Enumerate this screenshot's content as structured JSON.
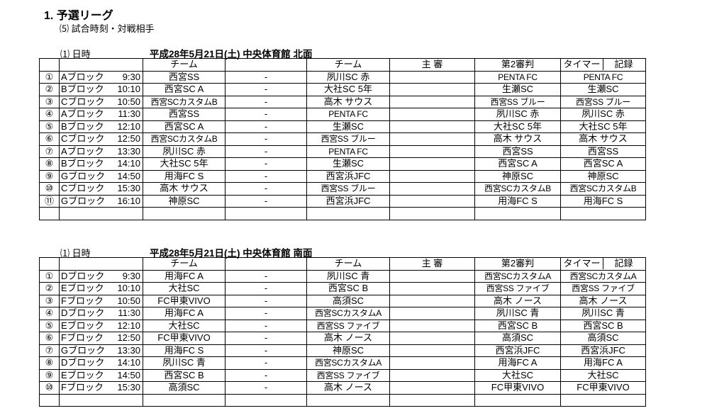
{
  "heading": "1.  予選リーグ",
  "subheading": "⑸  試合時刻・対戦相手",
  "headers": {
    "team": "チーム",
    "referee": "主 審",
    "second_referee": "第2審判",
    "timer": "タイマー",
    "record": "記録"
  },
  "sections": [
    {
      "label": "⑴  日時",
      "title": "平成28年5月21日(土)  中央体育館  北面",
      "rows": [
        {
          "no": "①",
          "block": "Aブロック",
          "time": "9:30",
          "home": "西宮SS",
          "vs": "-",
          "away": "夙川SC  赤",
          "ref": "",
          "ref2": "PENTA  FC",
          "timer": "PENTA  FC"
        },
        {
          "no": "②",
          "block": "Bブロック",
          "time": "10:10",
          "home": "西宮SC  A",
          "vs": "-",
          "away": "大社SC  5年",
          "ref": "",
          "ref2": "生瀬SC",
          "timer": "生瀬SC"
        },
        {
          "no": "③",
          "block": "Cブロック",
          "time": "10:50",
          "home": "西宮SCカスタムB",
          "vs": "-",
          "away": "高木  サウス",
          "ref": "",
          "ref2": "西宮SS  ブルー",
          "timer": "西宮SS  ブルー"
        },
        {
          "no": "④",
          "block": "Aブロック",
          "time": "11:30",
          "home": "西宮SS",
          "vs": "-",
          "away": "PENTA  FC",
          "ref": "",
          "ref2": "夙川SC  赤",
          "timer": "夙川SC  赤"
        },
        {
          "no": "⑤",
          "block": "Bブロック",
          "time": "12:10",
          "home": "西宮SC  A",
          "vs": "-",
          "away": "生瀬SC",
          "ref": "",
          "ref2": "大社SC  5年",
          "timer": "大社SC  5年"
        },
        {
          "no": "⑥",
          "block": "Cブロック",
          "time": "12:50",
          "home": "西宮SCカスタムB",
          "vs": "-",
          "away": "西宮SS  ブルー",
          "ref": "",
          "ref2": "高木  サウス",
          "timer": "高木  サウス"
        },
        {
          "no": "⑦",
          "block": "Aブロック",
          "time": "13:30",
          "home": "夙川SC  赤",
          "vs": "-",
          "away": "PENTA  FC",
          "ref": "",
          "ref2": "西宮SS",
          "timer": "西宮SS"
        },
        {
          "no": "⑧",
          "block": "Bブロック",
          "time": "14:10",
          "home": "大社SC  5年",
          "vs": "-",
          "away": "生瀬SC",
          "ref": "",
          "ref2": "西宮SC  A",
          "timer": "西宮SC  A"
        },
        {
          "no": "⑨",
          "block": "Gブロック",
          "time": "14:50",
          "home": "用海FC  S",
          "vs": "-",
          "away": "西宮浜JFC",
          "ref": "",
          "ref2": "神原SC",
          "timer": "神原SC"
        },
        {
          "no": "⑩",
          "block": "Cブロック",
          "time": "15:30",
          "home": "高木  サウス",
          "vs": "-",
          "away": "西宮SS  ブルー",
          "ref": "",
          "ref2": "西宮SCカスタムB",
          "timer": "西宮SCカスタムB"
        },
        {
          "no": "⑪",
          "block": "Gブロック",
          "time": "16:10",
          "home": "神原SC",
          "vs": "-",
          "away": "西宮浜JFC",
          "ref": "",
          "ref2": "用海FC  S",
          "timer": "用海FC  S"
        }
      ]
    },
    {
      "label": "⑴  日時",
      "title": "平成28年5月21日(土)  中央体育館  南面",
      "rows": [
        {
          "no": "①",
          "block": "Dブロック",
          "time": "9:30",
          "home": "用海FC  A",
          "vs": "-",
          "away": "夙川SC  青",
          "ref": "",
          "ref2": "西宮SCカスタムA",
          "timer": "西宮SCカスタムA"
        },
        {
          "no": "②",
          "block": "Eブロック",
          "time": "10:10",
          "home": "大社SC",
          "vs": "-",
          "away": "西宮SC  B",
          "ref": "",
          "ref2": "西宮SS  ファイブ",
          "timer": "西宮SS  ファイブ"
        },
        {
          "no": "③",
          "block": "Fブロック",
          "time": "10:50",
          "home": "FC甲東VIVO",
          "vs": "-",
          "away": "高須SC",
          "ref": "",
          "ref2": "高木  ノース",
          "timer": "高木  ノース"
        },
        {
          "no": "④",
          "block": "Dブロック",
          "time": "11:30",
          "home": "用海FC  A",
          "vs": "-",
          "away": "西宮SCカスタムA",
          "ref": "",
          "ref2": "夙川SC  青",
          "timer": "夙川SC  青"
        },
        {
          "no": "⑤",
          "block": "Eブロック",
          "time": "12:10",
          "home": "大社SC",
          "vs": "-",
          "away": "西宮SS  ファイブ",
          "ref": "",
          "ref2": "西宮SC  B",
          "timer": "西宮SC  B"
        },
        {
          "no": "⑥",
          "block": "Fブロック",
          "time": "12:50",
          "home": "FC甲東VIVO",
          "vs": "-",
          "away": "高木  ノース",
          "ref": "",
          "ref2": "高須SC",
          "timer": "高須SC"
        },
        {
          "no": "⑦",
          "block": "Gブロック",
          "time": "13:30",
          "home": "用海FC  S",
          "vs": "-",
          "away": "神原SC",
          "ref": "",
          "ref2": "西宮浜JFC",
          "timer": "西宮浜JFC"
        },
        {
          "no": "⑧",
          "block": "Dブロック",
          "time": "14:10",
          "home": "夙川SC  青",
          "vs": "-",
          "away": "西宮SCカスタムA",
          "ref": "",
          "ref2": "用海FC  A",
          "timer": "用海FC  A"
        },
        {
          "no": "⑨",
          "block": "Eブロック",
          "time": "14:50",
          "home": "西宮SC  B",
          "vs": "-",
          "away": "西宮SS  ファイブ",
          "ref": "",
          "ref2": "大社SC",
          "timer": "大社SC"
        },
        {
          "no": "⑩",
          "block": "Fブロック",
          "time": "15:30",
          "home": "高須SC",
          "vs": "-",
          "away": "高木  ノース",
          "ref": "",
          "ref2": "FC甲東VIVO",
          "timer": "FC甲東VIVO"
        }
      ]
    }
  ]
}
